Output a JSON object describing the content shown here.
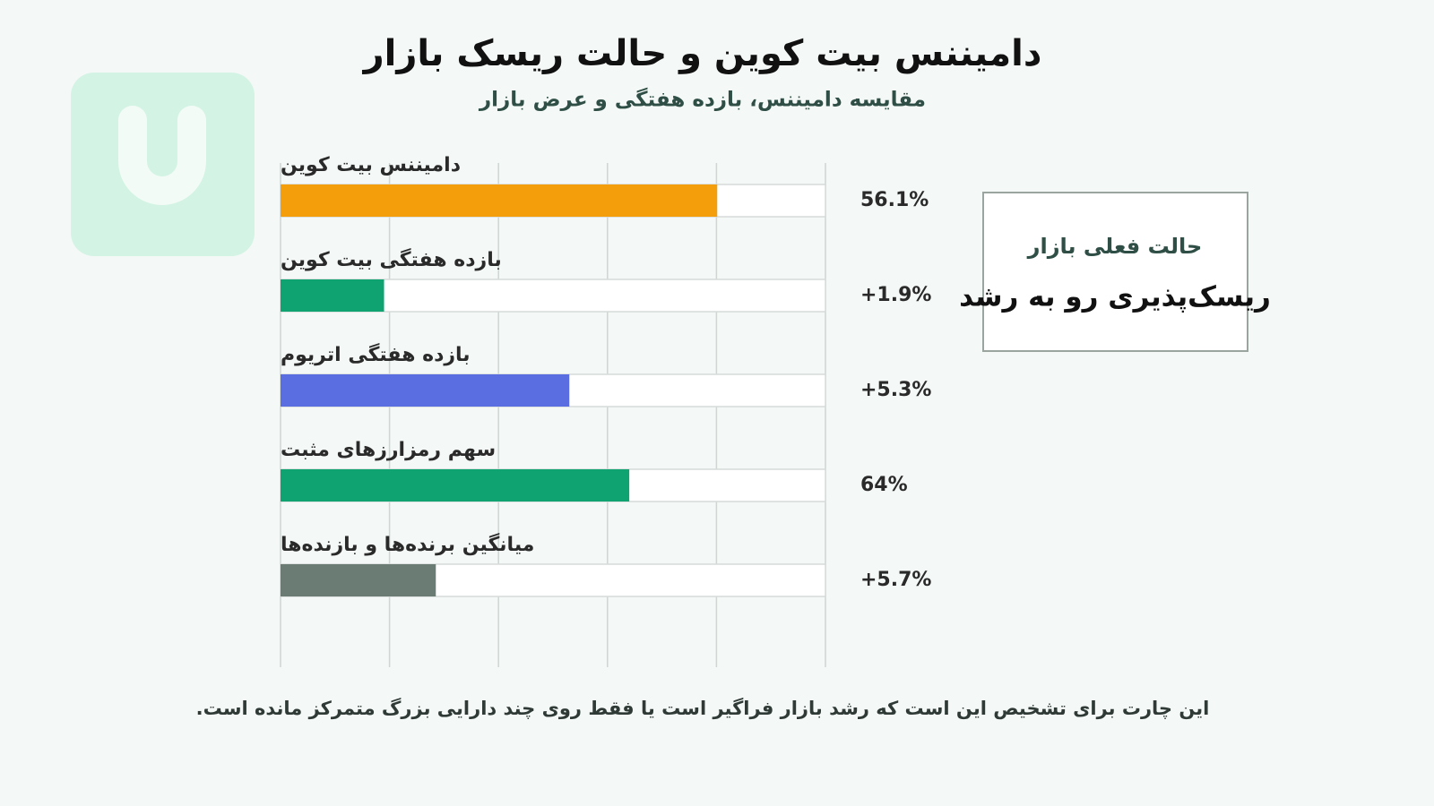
{
  "chart_data": {
    "type": "bar",
    "orientation": "horizontal",
    "title": "دامیننس بیت کوین و حالت ریسک بازار",
    "subtitle": "مقایسه دامیننس، بازده هفتگی و عرض بازار",
    "categories": [
      "دامیننس بیت کوین",
      "بازده هفتگی بیت کوین",
      "بازده هفتگی اتریوم",
      "سهم رمزارزهای مثبت",
      "میانگین برنده‌ها و بازنده‌ها"
    ],
    "values": [
      56.1,
      1.9,
      5.3,
      64,
      5.7
    ],
    "value_labels": [
      "56.1%",
      "+1.9%",
      "+5.3%",
      "64%",
      "+5.7%"
    ],
    "colors": [
      "#f59e0b",
      "#0ea371",
      "#5b6ee1",
      "#0ea371",
      "#6b7c74"
    ],
    "xlims": [
      [
        0,
        70
      ],
      [
        0,
        10
      ],
      [
        0,
        10
      ],
      [
        0,
        100
      ],
      [
        0,
        20
      ]
    ],
    "grid": true,
    "status_box": {
      "label": "حالت فعلی بازار",
      "value": "ریسک‌پذیری رو به رشد"
    },
    "footnote": "این چارت برای تشخیص این است که رشد بازار فراگیر است یا فقط روی چند دارایی بزرگ متمرکز مانده است."
  }
}
